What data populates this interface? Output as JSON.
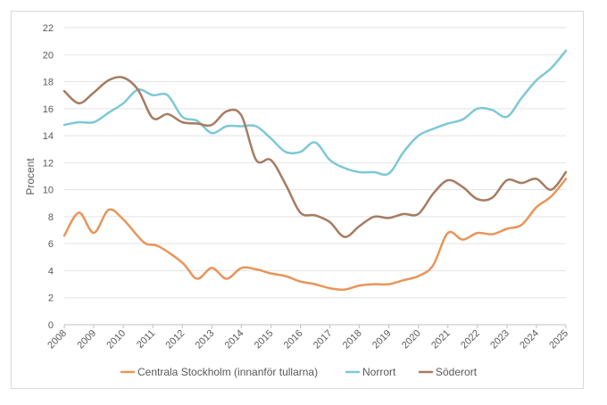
{
  "chart_data": {
    "type": "line",
    "title": "",
    "xlabel": "",
    "ylabel": "Procent",
    "ylim": [
      0,
      22
    ],
    "yticks": [
      0,
      2,
      4,
      6,
      8,
      10,
      12,
      14,
      16,
      18,
      20,
      22
    ],
    "xlim": [
      2008,
      2025
    ],
    "xticks": [
      "2008",
      "2009",
      "2010",
      "2011",
      "2012",
      "2013",
      "2014",
      "2015",
      "2016",
      "2017",
      "2018",
      "2019",
      "2020",
      "2021",
      "2022",
      "2023",
      "2024",
      "2025"
    ],
    "grid": "horizontal",
    "legend_position": "bottom",
    "series": [
      {
        "name": "Centrala Stockholm (innanför tullarna)",
        "color": "#e8955a",
        "x": [
          2008,
          2008.5,
          2009,
          2009.5,
          2010,
          2010.7,
          2011.2,
          2012,
          2012.5,
          2013,
          2013.5,
          2014,
          2014.5,
          2015,
          2015.5,
          2016,
          2016.5,
          2017,
          2017.5,
          2018,
          2018.5,
          2019,
          2019.5,
          2020,
          2020.5,
          2021,
          2021.5,
          2022,
          2022.5,
          2023,
          2023.5,
          2024,
          2024.5,
          2025
        ],
        "y": [
          6.6,
          8.3,
          6.8,
          8.5,
          7.8,
          6.1,
          5.8,
          4.6,
          3.4,
          4.2,
          3.4,
          4.2,
          4.1,
          3.8,
          3.6,
          3.2,
          3.0,
          2.7,
          2.6,
          2.9,
          3.0,
          3.0,
          3.3,
          3.6,
          4.4,
          6.8,
          6.3,
          6.8,
          6.7,
          7.1,
          7.4,
          8.7,
          9.5,
          10.8
        ]
      },
      {
        "name": "Norrort",
        "color": "#7ec8d6",
        "x": [
          2008,
          2008.5,
          2009,
          2009.5,
          2010,
          2010.5,
          2011,
          2011.5,
          2012,
          2012.5,
          2013,
          2013.5,
          2014,
          2014.5,
          2015,
          2015.5,
          2016,
          2016.5,
          2017,
          2017.5,
          2018,
          2018.5,
          2019,
          2019.5,
          2020,
          2020.5,
          2021,
          2021.5,
          2022,
          2022.5,
          2023,
          2023.5,
          2024,
          2024.5,
          2025
        ],
        "y": [
          14.8,
          15.0,
          15.0,
          15.7,
          16.4,
          17.4,
          17.0,
          17.0,
          15.4,
          15.1,
          14.2,
          14.7,
          14.7,
          14.7,
          13.8,
          12.8,
          12.8,
          13.5,
          12.2,
          11.6,
          11.3,
          11.3,
          11.2,
          12.8,
          14.0,
          14.5,
          14.9,
          15.2,
          16.0,
          15.9,
          15.4,
          16.8,
          18.1,
          19.0,
          20.3
        ]
      },
      {
        "name": "Söderort",
        "color": "#a67c62",
        "x": [
          2008,
          2008.5,
          2009,
          2009.5,
          2010,
          2010.5,
          2011,
          2011.5,
          2012,
          2012.5,
          2013,
          2013.5,
          2014,
          2014.5,
          2015,
          2015.5,
          2016,
          2016.5,
          2017,
          2017.5,
          2018,
          2018.5,
          2019,
          2019.5,
          2020,
          2020.5,
          2021,
          2021.5,
          2022,
          2022.5,
          2023,
          2023.5,
          2024,
          2024.5,
          2025
        ],
        "y": [
          17.3,
          16.4,
          17.2,
          18.1,
          18.3,
          17.4,
          15.3,
          15.6,
          15.0,
          14.9,
          14.8,
          15.8,
          15.5,
          12.2,
          12.2,
          10.4,
          8.3,
          8.1,
          7.6,
          6.5,
          7.3,
          8.0,
          7.9,
          8.2,
          8.2,
          9.7,
          10.7,
          10.2,
          9.3,
          9.4,
          10.7,
          10.5,
          10.8,
          10.0,
          11.3
        ]
      }
    ]
  }
}
